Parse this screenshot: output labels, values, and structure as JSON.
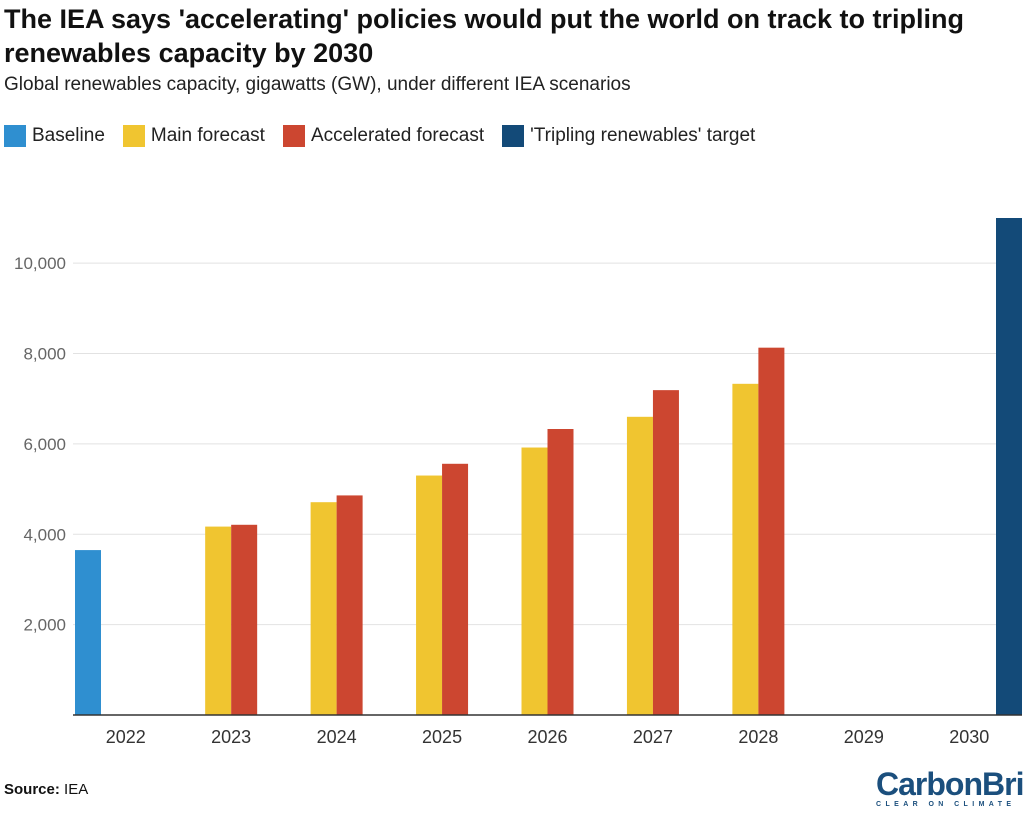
{
  "chart_data": {
    "type": "bar",
    "title": "The IEA says 'accelerating' policies would put the world on track to tripling renewables capacity by 2030",
    "subtitle": "Global renewables capacity, gigawatts (GW), under different IEA scenarios",
    "xlabel": "",
    "ylabel": "",
    "ylim": [
      0,
      11000
    ],
    "yticks": [
      "2,000",
      "4,000",
      "6,000",
      "8,000",
      "10,000"
    ],
    "ytick_values": [
      2000,
      4000,
      6000,
      8000,
      10000
    ],
    "grid": true,
    "legend_position": "top-left",
    "categories": [
      "2022",
      "2023",
      "2024",
      "2025",
      "2026",
      "2027",
      "2028",
      "2029",
      "2030"
    ],
    "series": [
      {
        "name": "Baseline",
        "color": "#2f8fd0",
        "values": [
          3650,
          null,
          null,
          null,
          null,
          null,
          null,
          null,
          null
        ]
      },
      {
        "name": "Main forecast",
        "color": "#f0c530",
        "values": [
          null,
          4170,
          4710,
          5300,
          5920,
          6600,
          7330,
          null,
          null
        ]
      },
      {
        "name": "Accelerated forecast",
        "color": "#cc4630",
        "values": [
          null,
          4210,
          4860,
          5560,
          6330,
          7190,
          8130,
          null,
          null
        ]
      },
      {
        "name": "'Tripling renewables' target",
        "color": "#134a78",
        "values": [
          null,
          null,
          null,
          null,
          null,
          null,
          null,
          null,
          11000
        ]
      }
    ]
  },
  "footer": {
    "source_label": "Source:",
    "source_value": "IEA"
  },
  "logo": {
    "main": "CarbonBrief",
    "sub": "CLEAR ON CLIMATE"
  }
}
